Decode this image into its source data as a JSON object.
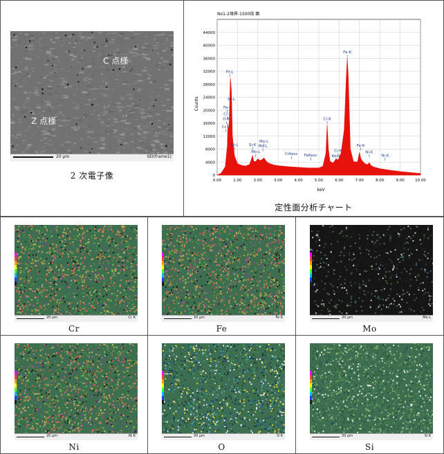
{
  "sem_panel": {
    "caption": "2 次電子像",
    "point_c_label": "C 点様",
    "point_z_label": "Z 点様",
    "scale_text": "20 µm",
    "frame_text": "SEI(frame1)"
  },
  "chart_panel": {
    "caption": "定性面分析チャート"
  },
  "chart_data": {
    "type": "line",
    "title": "No1-2境界-1500倍 面",
    "xlabel": "keV",
    "ylabel": "Counts",
    "xlim": [
      0,
      10
    ],
    "ylim": [
      0,
      48000
    ],
    "x_ticks": [
      "0.00",
      "1.00",
      "2.00",
      "3.00",
      "4.00",
      "5.00",
      "6.00",
      "7.00",
      "8.00",
      "9.00",
      "10.00"
    ],
    "y_ticks": [
      "0",
      "4000",
      "8000",
      "12000",
      "16000",
      "20000",
      "24000",
      "28000",
      "32000",
      "36000",
      "40000",
      "44000"
    ],
    "grid": true,
    "series_color": "#e8120c",
    "x": [
      0.0,
      0.2,
      0.4,
      0.5,
      0.53,
      0.57,
      0.6,
      0.65,
      0.7,
      0.75,
      0.85,
      1.0,
      1.2,
      1.4,
      1.6,
      1.74,
      1.8,
      1.9,
      2.0,
      2.1,
      2.2,
      2.3,
      2.45,
      2.6,
      2.8,
      3.0,
      3.5,
      4.0,
      4.5,
      5.0,
      5.2,
      5.35,
      5.41,
      5.47,
      5.55,
      5.7,
      5.85,
      5.95,
      6.1,
      6.25,
      6.35,
      6.4,
      6.45,
      6.55,
      6.7,
      6.9,
      7.0,
      7.06,
      7.12,
      7.25,
      7.4,
      7.48,
      7.56,
      7.7,
      8.0,
      8.5,
      9.0,
      9.5,
      10.0
    ],
    "y": [
      0,
      600,
      2600,
      9000,
      16000,
      13000,
      17500,
      30000,
      26000,
      12000,
      6000,
      3500,
      3000,
      2800,
      3300,
      6000,
      4200,
      4200,
      5000,
      4500,
      4700,
      5300,
      4000,
      3500,
      3100,
      2900,
      2600,
      2400,
      2200,
      2200,
      2700,
      6800,
      15500,
      8000,
      4200,
      3700,
      5000,
      4600,
      7000,
      14000,
      30000,
      36000,
      30000,
      8000,
      4200,
      4000,
      7000,
      5200,
      4500,
      3600,
      3200,
      3800,
      3000,
      2500,
      2000,
      1500,
      1100,
      800,
      500
    ],
    "annotations": [
      {
        "text": "Fe-L",
        "x": 0.62,
        "y": 31500
      },
      {
        "text": "Ni-L",
        "x": 0.7,
        "y": 23000
      },
      {
        "text": "Fe-L",
        "x": 0.5,
        "y": 20500
      },
      {
        "text": "Cr-L",
        "x": 0.5,
        "y": 18500
      },
      {
        "text": "O-K",
        "x": 0.45,
        "y": 17000
      },
      {
        "text": "Cr-L",
        "x": 0.42,
        "y": 14500
      },
      {
        "text": "Ni-L",
        "x": 0.85,
        "y": 9000
      },
      {
        "text": "Si-K",
        "x": 1.74,
        "y": 9000
      },
      {
        "text": "Mo-L",
        "x": 2.3,
        "y": 10000
      },
      {
        "text": "Mo-L",
        "x": 2.25,
        "y": 8600
      },
      {
        "text": "Mo-L",
        "x": 1.9,
        "y": 6800
      },
      {
        "text": "CrKesc",
        "x": 3.65,
        "y": 6200
      },
      {
        "text": "FeKesc",
        "x": 4.6,
        "y": 5800
      },
      {
        "text": "Cr-K",
        "x": 5.41,
        "y": 17000
      },
      {
        "text": "Cr-K",
        "x": 5.95,
        "y": 7200
      },
      {
        "text": "Kesc",
        "x": 5.85,
        "y": 5600
      },
      {
        "text": "Fe-K",
        "x": 6.4,
        "y": 37500
      },
      {
        "text": "Fe-K",
        "x": 7.06,
        "y": 8800
      },
      {
        "text": "Ni-K",
        "x": 7.48,
        "y": 6700
      },
      {
        "text": "Ni-K",
        "x": 8.26,
        "y": 5700
      }
    ]
  },
  "element_maps": [
    {
      "label": "Cr",
      "tag": "Cr K",
      "scale_text": "20 µm",
      "palette": [
        "#d1604c",
        "#3f9a4c",
        "#c9a24a",
        "#6b8a3a",
        "#e07a66",
        "#a5c05a",
        "#2f7a55",
        "#7b4c9a",
        "#1f1f1f"
      ],
      "dark_bg": false
    },
    {
      "label": "Fe",
      "tag": "Fe K",
      "scale_text": "20 µm",
      "palette": [
        "#d1604c",
        "#3f9a4c",
        "#c9a24a",
        "#6b8a3a",
        "#e07a66",
        "#a5c05a",
        "#2f7a55",
        "#7b4c9a",
        "#1f1f1f"
      ],
      "dark_bg": false
    },
    {
      "label": "Mo",
      "tag": "Mo L",
      "scale_text": "20 µm",
      "palette": [
        "#1c1c1c",
        "#202020",
        "#2a4d2a",
        "#3f5e7a",
        "#4a6f3e",
        "#c8c8c8",
        "#6a6a6a",
        "#1c1c1c",
        "#1c1c1c"
      ],
      "dark_bg": true
    },
    {
      "label": "Ni",
      "tag": "Ni K",
      "scale_text": "20 µm",
      "palette": [
        "#d1604c",
        "#3f9a4c",
        "#c9a24a",
        "#6b8a3a",
        "#e07a66",
        "#a5c05a",
        "#2f7a55",
        "#7b4c9a",
        "#1f1f1f"
      ],
      "dark_bg": false
    },
    {
      "label": "O",
      "tag": "O K",
      "scale_text": "20 µm",
      "palette": [
        "#1d3f6b",
        "#2c6a8a",
        "#3f9a6c",
        "#224a2c",
        "#5aa0b8",
        "#e6e6e6",
        "#e8d040",
        "#1d2e4a",
        "#3f7a4c"
      ],
      "dark_bg": false
    },
    {
      "label": "Si",
      "tag": "Si K",
      "scale_text": "20 µm",
      "palette": [
        "#3f7a4c",
        "#2c5a3c",
        "#6aa060",
        "#9ac080",
        "#1f4a5a",
        "#e8e8e8",
        "#4f8a5c",
        "#2c5a3c",
        "#6aa060"
      ],
      "dark_bg": false
    }
  ]
}
